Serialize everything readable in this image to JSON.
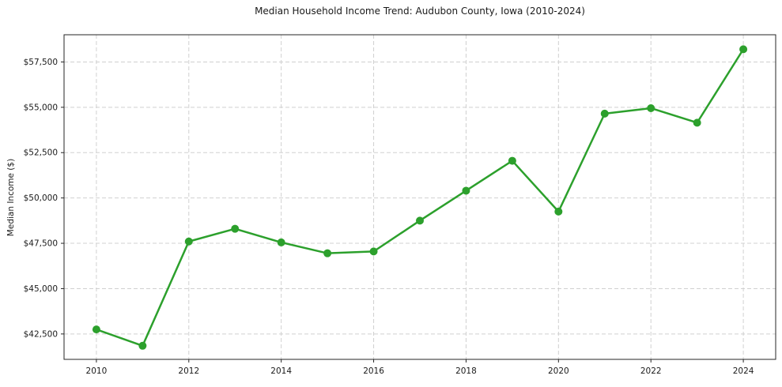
{
  "chart_data": {
    "type": "line",
    "title": "Median Household Income Trend: Audubon County, Iowa (2010-2024)",
    "xlabel": "",
    "ylabel": "Median Income ($)",
    "series": [
      {
        "name": "Median Household Income",
        "x": [
          2010,
          2011,
          2012,
          2013,
          2014,
          2015,
          2016,
          2017,
          2018,
          2019,
          2020,
          2021,
          2022,
          2023,
          2024
        ],
        "values": [
          42750,
          41850,
          47600,
          48300,
          47550,
          46950,
          47050,
          48750,
          50400,
          52050,
          49250,
          54650,
          54950,
          54150,
          58200
        ]
      }
    ],
    "x_ticks": [
      2010,
      2012,
      2014,
      2016,
      2018,
      2020,
      2022,
      2024
    ],
    "x_tick_labels": [
      "2010",
      "2012",
      "2014",
      "2016",
      "2018",
      "2020",
      "2022",
      "2024"
    ],
    "y_ticks": [
      42500,
      45000,
      47500,
      50000,
      52500,
      55000,
      57500
    ],
    "y_tick_labels": [
      "$42,500",
      "$45,000",
      "$47,500",
      "$50,000",
      "$52,500",
      "$55,000",
      "$57,500"
    ],
    "xlim": [
      2009.3,
      2024.7
    ],
    "ylim": [
      41100,
      59000
    ],
    "grid": true,
    "grid_style": "dashed",
    "legend": false,
    "marker": "circle",
    "colors": {
      "line": "#2ca02c",
      "grid": "#d0d0d0",
      "axis": "#262626",
      "text": "#1a1a1a",
      "background": "#ffffff"
    }
  }
}
